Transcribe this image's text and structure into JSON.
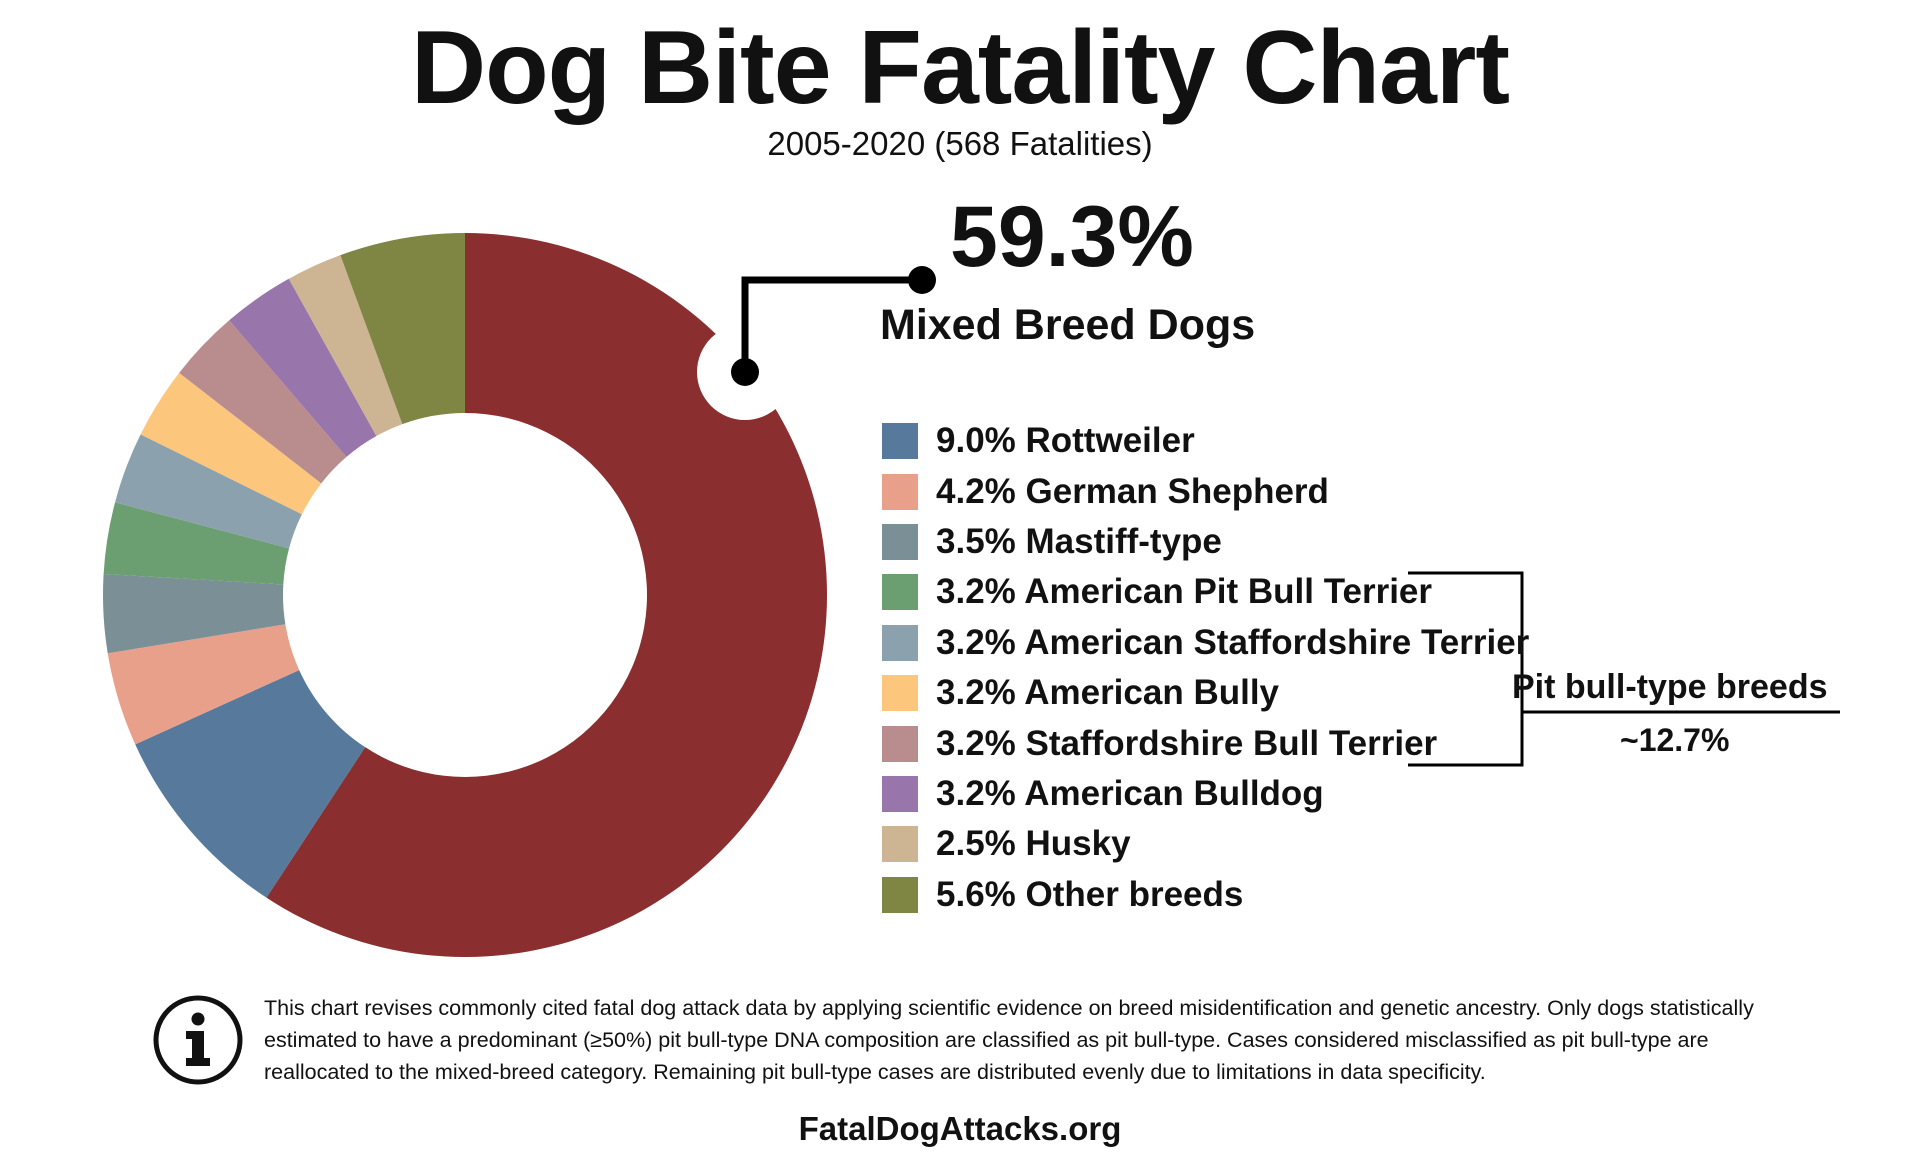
{
  "header": {
    "title": "Dog Bite Fatality Chart",
    "subtitle": "2005-2020 (568 Fatalities)"
  },
  "highlight": {
    "value": "59.3%",
    "label": "Mixed Breed Dogs"
  },
  "legend": [
    {
      "text": "9.0% Rottweiler"
    },
    {
      "text": "4.2% German Shepherd"
    },
    {
      "text": "3.5% Mastiff-type"
    },
    {
      "text": "3.2% American Pit Bull Terrier"
    },
    {
      "text": "3.2% American Staffordshire Terrier"
    },
    {
      "text": "3.2% American Bully"
    },
    {
      "text": "3.2% Staffordshire Bull Terrier"
    },
    {
      "text": "3.2% American Bulldog"
    },
    {
      "text": "2.5% Husky"
    },
    {
      "text": "5.6% Other breeds"
    }
  ],
  "group_annotation": {
    "label": "Pit bull-type breeds",
    "value": "~12.7%"
  },
  "footnote": "This chart revises commonly cited fatal dog attack data by applying scientific evidence on breed misidentification and genetic ancestry. Only dogs statistically estimated to have a predominant (≥50%) pit bull-type DNA composition are classified as pit bull-type. Cases considered misclassified as pit bull-type are reallocated to the mixed-breed category. Remaining pit bull-type cases are distributed evenly due to limitations in data specificity.",
  "source": "FatalDogAttacks.org",
  "icons": {
    "info": "info-icon"
  },
  "chart_data": {
    "type": "pie",
    "title": "Dog Bite Fatality Chart",
    "subtitle": "2005-2020 (568 Fatalities)",
    "donut": true,
    "direction": "clockwise from top",
    "legend_position": "right",
    "categories": [
      "Mixed Breed Dogs",
      "Rottweiler",
      "German Shepherd",
      "Mastiff-type",
      "American Pit Bull Terrier",
      "American Staffordshire Terrier",
      "American Bully",
      "Staffordshire Bull Terrier",
      "American Bulldog",
      "Husky",
      "Other breeds"
    ],
    "values": [
      59.3,
      9.0,
      4.2,
      3.5,
      3.2,
      3.2,
      3.2,
      3.2,
      3.2,
      2.5,
      5.6
    ],
    "colors": [
      "#8b2e2f",
      "#577a9c",
      "#e8a08a",
      "#7a8f96",
      "#6b9e70",
      "#8ba1ad",
      "#fcc77c",
      "#b98d8d",
      "#9875aa",
      "#cdb593",
      "#7f8543"
    ],
    "group": {
      "name": "Pit bull-type breeds",
      "members": [
        4,
        5,
        6,
        7
      ],
      "value": 12.7
    }
  }
}
